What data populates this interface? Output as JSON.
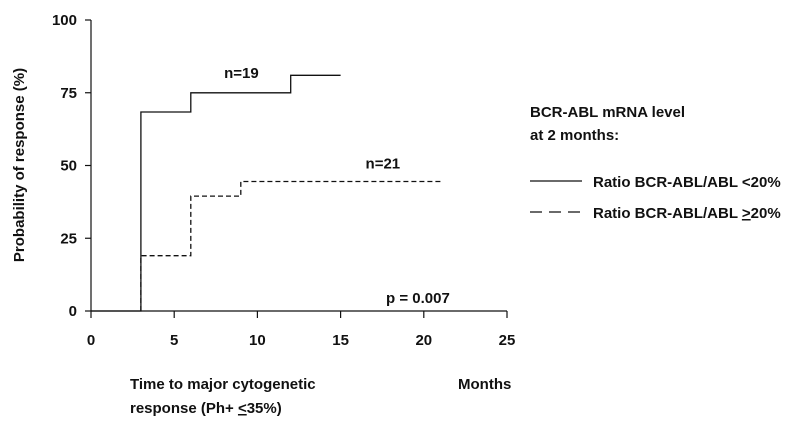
{
  "chart_data": {
    "type": "line",
    "step": true,
    "title": "",
    "ylabel": "Probability of response (%)",
    "xlabel_line1": "Time to major cytogenetic",
    "xlabel_line2_pre": "response (Ph+ ",
    "xlabel_line2_u": "<",
    "xlabel_line2_post": "35%)",
    "xunit": "Months",
    "xlim": [
      0,
      25
    ],
    "ylim": [
      0,
      100
    ],
    "xticks": [
      0,
      5,
      10,
      15,
      20,
      25
    ],
    "yticks": [
      0,
      25,
      50,
      75,
      100
    ],
    "grid": false,
    "legend_title_line1": "BCR-ABL mRNA level",
    "legend_title_line2": "at 2 months:",
    "legend_placement": "right",
    "series": [
      {
        "name": "Ratio BCR-ABL/ABL <20%",
        "label_pre": "Ratio BCR-ABL/ABL ",
        "label_u": "<",
        "label_post": "20%",
        "style": "solid",
        "annotation": "n=19",
        "points": [
          [
            0,
            0
          ],
          [
            3,
            0
          ],
          [
            3,
            68.4
          ],
          [
            6,
            68.4
          ],
          [
            6,
            75
          ],
          [
            12,
            75
          ],
          [
            12,
            81
          ],
          [
            15,
            81
          ]
        ]
      },
      {
        "name": "Ratio BCR-ABL/ABL >20%",
        "label_pre": "Ratio BCR-ABL/ABL ",
        "label_u": ">",
        "label_post": "20%",
        "style": "dashed",
        "annotation": "n=21",
        "points": [
          [
            3,
            0
          ],
          [
            3,
            19
          ],
          [
            6,
            19
          ],
          [
            6,
            39.5
          ],
          [
            9,
            39.5
          ],
          [
            9,
            44.5
          ],
          [
            21,
            44.5
          ]
        ]
      }
    ],
    "pvalue": "p = 0.007"
  }
}
